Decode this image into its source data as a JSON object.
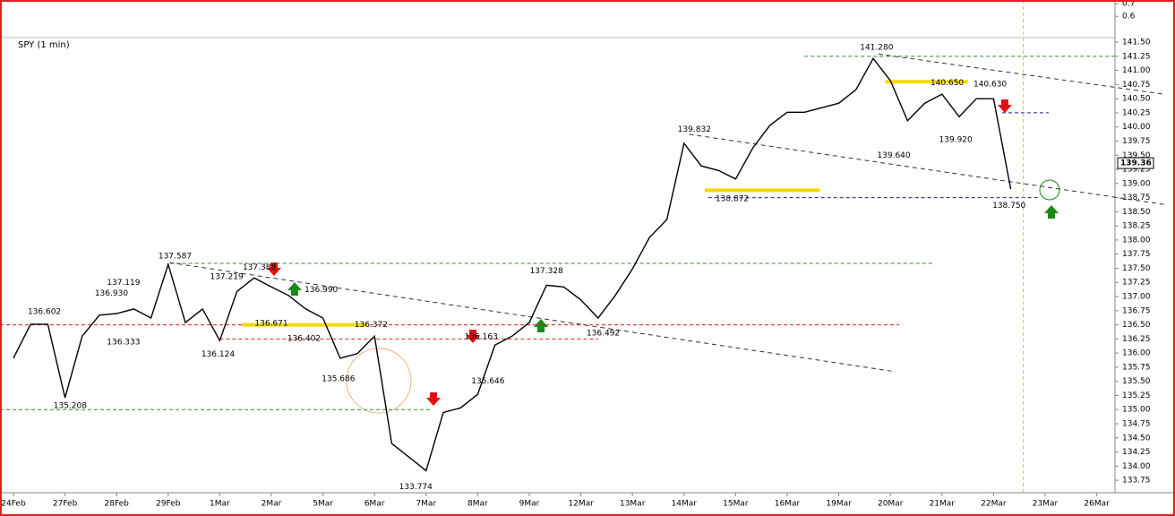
{
  "chart_data": {
    "type": "line",
    "title": "SPY (1 min)",
    "categories": [
      "24Feb",
      null,
      null,
      "27Feb",
      null,
      null,
      "28Feb",
      null,
      null,
      "29Feb",
      null,
      null,
      "1Mar",
      null,
      null,
      "2Mar",
      null,
      null,
      "5Mar",
      null,
      null,
      "6Mar",
      null,
      null,
      "7Mar",
      null,
      null,
      "8Mar",
      null,
      null,
      "9Mar",
      null,
      null,
      "12Mar",
      null,
      null,
      "13Mar",
      null,
      null,
      "14Mar",
      null,
      null,
      "15Mar",
      null,
      null,
      "16Mar",
      null,
      null,
      "19Mar",
      null,
      null,
      "20Mar",
      null,
      null,
      "21Mar",
      null,
      null,
      "22Mar",
      null,
      null,
      "23Mar",
      null,
      null,
      "26Mar",
      null,
      null
    ],
    "series": [
      {
        "name": "SPY",
        "color": "#000000",
        "values": [
          135.91,
          136.51,
          136.51,
          135.21,
          136.3,
          136.67,
          136.7,
          136.78,
          136.62,
          137.57,
          136.54,
          136.78,
          136.22,
          137.09,
          137.33,
          137.17,
          137.02,
          136.78,
          136.62,
          135.91,
          135.99,
          136.3,
          134.4,
          134.16,
          133.92,
          134.95,
          135.03,
          135.27,
          136.14,
          136.3,
          136.54,
          137.2,
          137.17,
          136.94,
          136.62,
          137.02,
          137.49,
          138.05,
          138.36,
          139.71,
          139.31,
          139.23,
          139.08,
          139.63,
          140.03,
          140.26,
          140.26,
          140.34,
          140.42,
          140.66,
          141.21,
          140.82,
          140.11,
          140.42,
          140.58,
          140.18,
          140.5,
          140.5,
          138.9,
          null,
          null,
          null,
          null,
          null,
          null,
          null
        ]
      }
    ],
    "last_price": 139.36,
    "ylim": [
      133.53,
      141.58
    ],
    "yticks": [
      133.75,
      {
        "value": 134.0,
        "label": "134.00"
      },
      134.25,
      {
        "value": 134.5,
        "label": "134.50"
      },
      134.75,
      {
        "value": 135.0,
        "label": "135.00"
      },
      135.25,
      {
        "value": 135.5,
        "label": "135.50"
      },
      135.75,
      {
        "value": 136.0,
        "label": "136.00"
      },
      136.25,
      {
        "value": 136.5,
        "label": "136.50"
      },
      136.75,
      {
        "value": 137.0,
        "label": "137.00"
      },
      137.25,
      {
        "value": 137.5,
        "label": "137.50"
      },
      137.75,
      {
        "value": 138.0,
        "label": "138.00"
      },
      138.25,
      {
        "value": 138.5,
        "label": "138.50"
      },
      138.75,
      {
        "value": 139.0,
        "label": "139.00"
      },
      139.25,
      {
        "value": 139.5,
        "label": "139.50"
      },
      139.75,
      {
        "value": 140.0,
        "label": "140.00"
      },
      140.25,
      {
        "value": 140.5,
        "label": "140.50"
      },
      140.75,
      {
        "value": 141.0,
        "label": "141.00"
      },
      141.25,
      {
        "value": 141.5,
        "label": "141.50"
      }
    ],
    "indicator_ylim": [
      0.43,
      0.73
    ],
    "indicator_yticks": [
      0.7,
      0.6
    ],
    "annotations": [
      {
        "value": 136.602,
        "label": "136.602",
        "x": 1.8
      },
      {
        "value": 135.208,
        "label": "135.208",
        "x": 3.3
      },
      {
        "value": 137.119,
        "label": "137.119",
        "x": 6.4
      },
      {
        "value": 136.93,
        "label": "136.930",
        "x": 5.7
      },
      {
        "value": 136.333,
        "label": "136.333",
        "x": 6.4
      },
      {
        "value": 137.587,
        "label": "137.587",
        "x": 9.4
      },
      {
        "value": 136.124,
        "label": "136.124",
        "x": 11.9
      },
      {
        "value": 137.219,
        "label": "137.219",
        "x": 12.4
      },
      {
        "value": 137.388,
        "label": "137.388",
        "x": 14.3
      },
      {
        "value": 136.671,
        "label": "136.671",
        "x": 15
      },
      {
        "value": 136.99,
        "label": "136.990",
        "x": 17.9
      },
      {
        "value": 136.402,
        "label": "136.402",
        "x": 16.9
      },
      {
        "value": 136.372,
        "label": "136.372",
        "x": 20.8
      },
      {
        "value": 135.686,
        "label": "135.686",
        "x": 18.9
      },
      {
        "value": 133.774,
        "label": "133.774",
        "x": 23.4
      },
      {
        "value": 136.163,
        "label": "136.163",
        "x": 27.2
      },
      {
        "value": 135.646,
        "label": "135.646",
        "x": 27.6
      },
      {
        "value": 137.328,
        "label": "137.328",
        "x": 31
      },
      {
        "value": 136.492,
        "label": "136.492",
        "x": 34.3
      },
      {
        "value": 139.832,
        "label": "139.832",
        "x": 39.6
      },
      {
        "value": 138.872,
        "label": "138.872",
        "x": 41.8
      },
      {
        "value": 141.28,
        "label": "141.280",
        "x": 50.2
      },
      {
        "value": 140.65,
        "label": "140.650",
        "x": 54.3
      },
      {
        "value": 140.63,
        "label": "140.630",
        "x": 56.8
      },
      {
        "value": 139.64,
        "label": "139.640",
        "x": 51.2
      },
      {
        "value": 139.92,
        "label": "139.920",
        "x": 54.8
      },
      {
        "value": 138.75,
        "label": "138.750",
        "x": 57.9
      }
    ],
    "levels": [
      {
        "value": 141.25,
        "color": "#2e8b2e",
        "from": 46,
        "to": 64.5
      },
      {
        "value": 137.587,
        "color": "#2e8b2e",
        "from": 9.1,
        "to": 53.5
      },
      {
        "value": 136.5,
        "color": "#d42020",
        "from": -0.8,
        "to": 51.5
      },
      {
        "value": 136.25,
        "color": "#d42020",
        "from": 12,
        "to": 34
      },
      {
        "value": 135.0,
        "color": "#2e8b2e",
        "from": -0.8,
        "to": 24.3
      },
      {
        "value": 138.75,
        "color": "#20207a",
        "from": 40.4,
        "to": 59.6
      },
      {
        "value": 140.25,
        "color": "#20207a",
        "from": 57.5,
        "to": 60.2
      }
    ],
    "highlights": [
      {
        "value": 138.88,
        "color": "#f5d800",
        "from": 40.2,
        "to": 46.9
      },
      {
        "value": 136.5,
        "color": "#f5d800",
        "from": 13.3,
        "to": 20.6
      },
      {
        "value": 140.8,
        "color": "#f5d800",
        "from": 50.7,
        "to": 55.5
      }
    ],
    "trendlines": [
      {
        "from": [
          9.1,
          137.6
        ],
        "to": [
          51.3,
          135.67
        ],
        "color": "#333333"
      },
      {
        "from": [
          39.3,
          139.87
        ],
        "to": [
          66.9,
          138.63
        ],
        "color": "#333333"
      },
      {
        "from": [
          50.3,
          141.29
        ],
        "to": [
          66.9,
          140.58
        ],
        "color": "#333333"
      }
    ]
  }
}
